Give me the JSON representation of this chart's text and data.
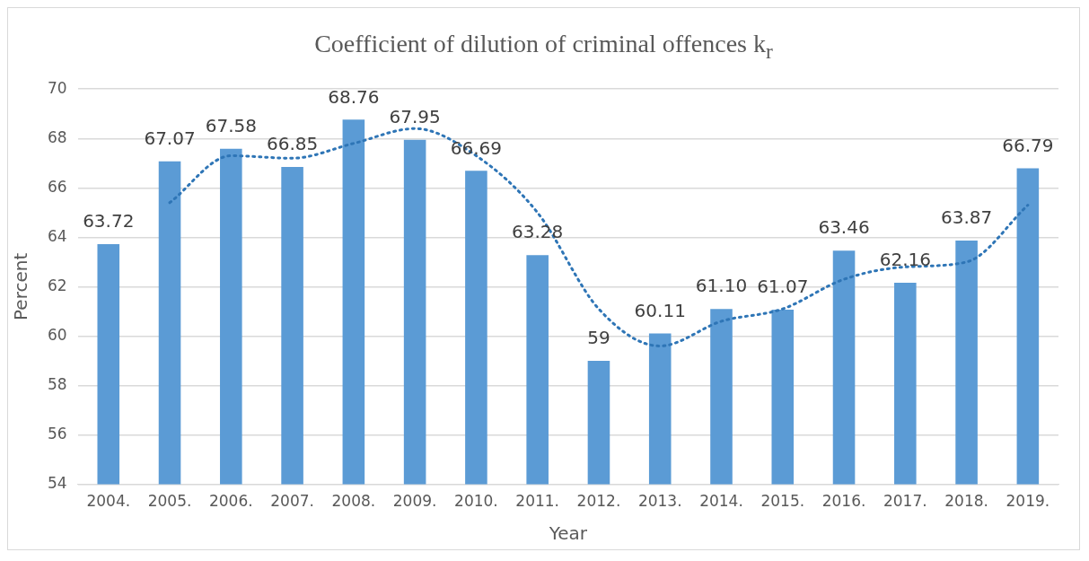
{
  "chart_data": {
    "type": "bar",
    "title": "Coefficient of dilution of criminal offences k$_{r}$",
    "xlabel": "Year",
    "ylabel": "Percent",
    "categories": [
      "2004.",
      "2005.",
      "2006.",
      "2007.",
      "2008.",
      "2009.",
      "2010.",
      "2011.",
      "2012.",
      "2013.",
      "2014.",
      "2015.",
      "2016.",
      "2017.",
      "2018.",
      "2019."
    ],
    "series": [
      {
        "color": "#5b9bd5",
        "values": [
          63.72,
          67.07,
          67.58,
          66.85,
          68.76,
          67.95,
          66.69,
          63.28,
          59,
          60.11,
          61.1,
          61.07,
          63.46,
          62.16,
          63.87,
          66.79
        ],
        "value_labels": [
          "63.72",
          "67.07",
          "67.58",
          "66.85",
          "68.76",
          "67.95",
          "66.69",
          "63.28",
          "59",
          "60.11",
          "61.10",
          "61.07",
          "63.46",
          "62.16",
          "63.87",
          "66.79"
        ]
      },
      {
        "type": "line",
        "color": "#2e75b6",
        "line_style": "dotted",
        "marker": "none",
        "values": [
          null,
          65.4,
          67.3,
          67.2,
          67.8,
          68.4,
          67.3,
          65.0,
          61.1,
          59.6,
          60.6,
          61.1,
          62.3,
          62.8,
          63.0,
          65.3
        ]
      }
    ],
    "ylim": [
      54,
      70
    ],
    "yticks": [
      54,
      56,
      58,
      60,
      62,
      64,
      66,
      68,
      70
    ],
    "grid": "y"
  }
}
